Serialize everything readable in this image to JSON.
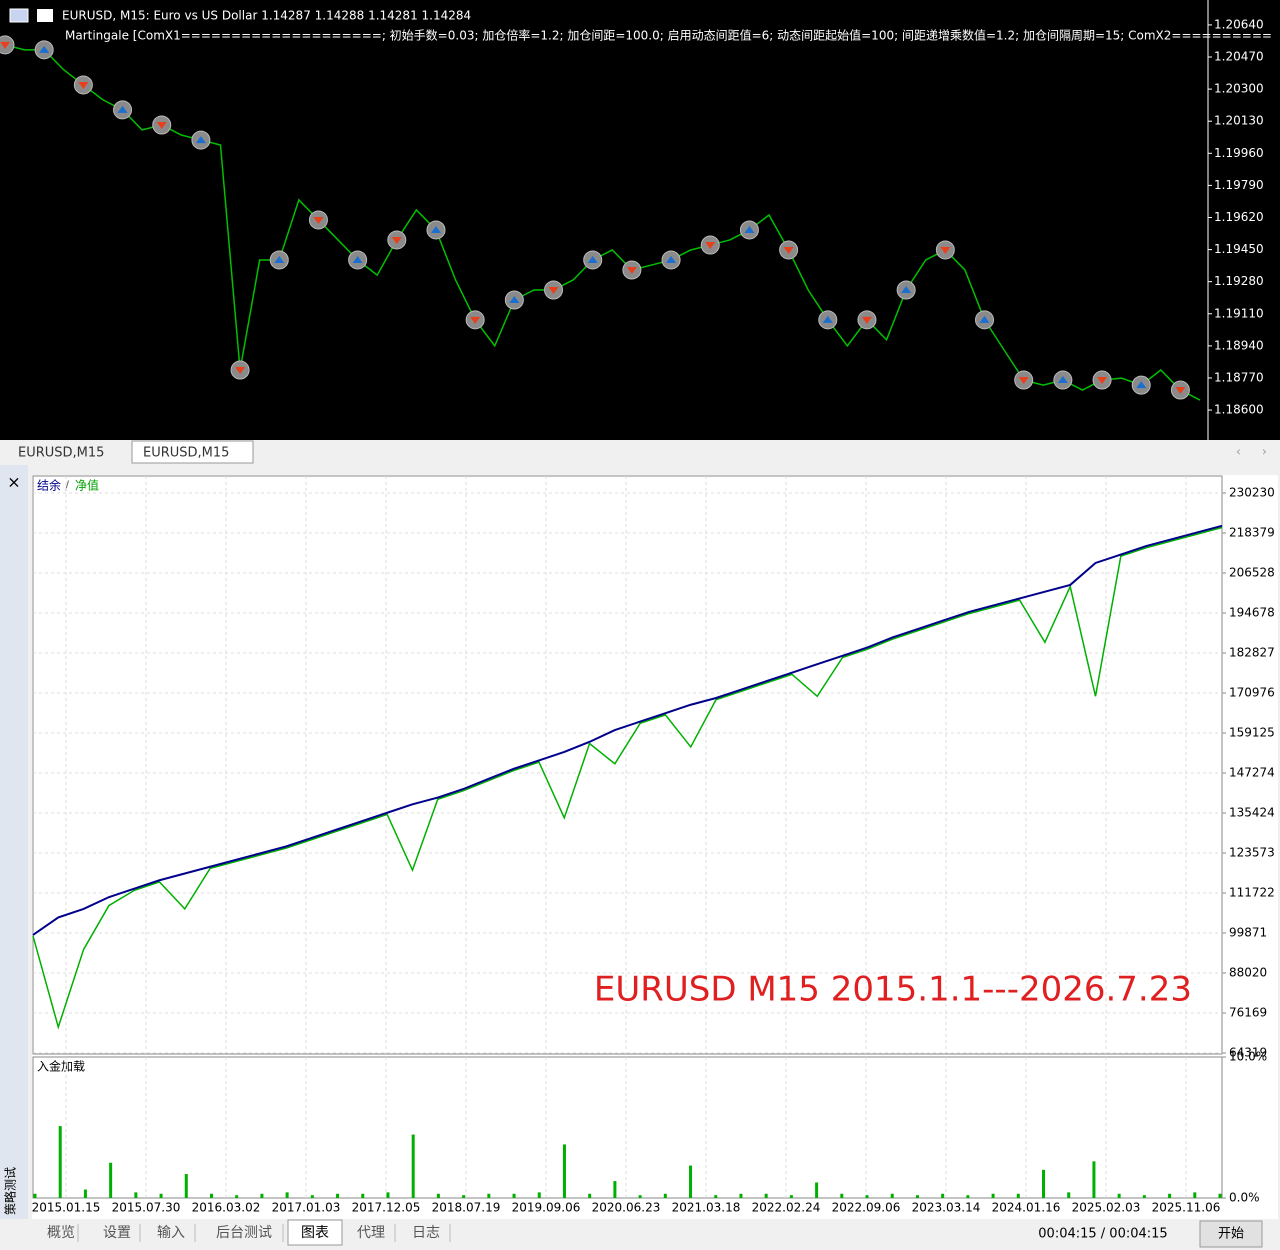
{
  "chart_data": [
    {
      "type": "line",
      "symbol_info": "EURUSD, M15:  Euro vs US Dollar  1.14287 1.14288 1.14281 1.14284",
      "expert": "Martingale [ComX1====================; 初始手数=0.03; 加仓倍率=1.2; 加仓间距=100.0; 启用动态间距值=6; 动态间距起始值=100; 间距递增乘数值=1.2; 加仓间隔周期=15; ComX2==========",
      "values": [
        1.20534,
        1.20508,
        1.20508,
        1.20402,
        1.20322,
        1.20243,
        1.2019,
        1.20084,
        1.2011,
        1.20057,
        1.2003,
        1.20004,
        1.18812,
        1.19395,
        1.19395,
        1.19713,
        1.19607,
        1.19501,
        1.19395,
        1.19315,
        1.19501,
        1.1966,
        1.19554,
        1.19289,
        1.19078,
        1.1894,
        1.19183,
        1.19236,
        1.19236,
        1.19289,
        1.19395,
        1.19448,
        1.19342,
        1.19368,
        1.19395,
        1.19448,
        1.19474,
        1.19501,
        1.19554,
        1.19633,
        1.19448,
        1.19236,
        1.19078,
        1.1894,
        1.19078,
        1.18972,
        1.19236,
        1.19395,
        1.19448,
        1.19342,
        1.19078,
        1.18918,
        1.18759,
        1.18732,
        1.18759,
        1.18706,
        1.18759,
        1.18769,
        1.18732,
        1.18812,
        1.18706,
        1.18653
      ],
      "color": "#00c000",
      "ylim": [
        1.18452,
        1.20772
      ],
      "yticks": [
        {
          "value": 1.2064,
          "label": "1.20640"
        },
        {
          "value": 1.2047,
          "label": "1.20470"
        },
        {
          "value": 1.203,
          "label": "1.20300"
        },
        {
          "value": 1.2013,
          "label": "1.20130"
        },
        {
          "value": 1.1996,
          "label": "1.19960"
        },
        {
          "value": 1.1979,
          "label": "1.19790"
        },
        {
          "value": 1.1962,
          "label": "1.19620"
        },
        {
          "value": 1.1945,
          "label": "1.19450"
        },
        {
          "value": 1.1928,
          "label": "1.19280"
        },
        {
          "value": 1.1911,
          "label": "1.19110"
        },
        {
          "value": 1.1894,
          "label": "1.18940"
        },
        {
          "value": 1.1877,
          "label": "1.18770"
        },
        {
          "value": 1.186,
          "label": "1.18600"
        }
      ]
    },
    {
      "type": "line",
      "legend_separator": "/",
      "annotation": "EURUSD M15 2015.1.1---2026.7.23",
      "series": [
        {
          "name": "净值",
          "color": "#00b000",
          "values": [
            99000,
            72000,
            95000,
            108000,
            112500,
            115000,
            107000,
            119000,
            121000,
            123000,
            125000,
            127500,
            130000,
            132500,
            135000,
            118500,
            139500,
            142000,
            145000,
            148000,
            150500,
            134000,
            156000,
            150000,
            162000,
            164500,
            155000,
            169000,
            171500,
            174000,
            176500,
            170000,
            181500,
            184000,
            187000,
            189500,
            192000,
            194500,
            196500,
            198500,
            186000,
            202500,
            170000,
            211500,
            214000,
            216000,
            218000,
            220000
          ]
        },
        {
          "name": "结余",
          "color": "#00008b",
          "values": [
            99300,
            104500,
            107000,
            110500,
            113000,
            115500,
            117500,
            119500,
            121500,
            123500,
            125500,
            128000,
            130500,
            133000,
            135500,
            138000,
            140000,
            142500,
            145500,
            148500,
            151000,
            153500,
            156500,
            160000,
            162500,
            165000,
            167500,
            169500,
            172000,
            174500,
            177000,
            179500,
            182000,
            184500,
            187500,
            190000,
            192500,
            195000,
            197000,
            199000,
            201000,
            203000,
            209500,
            212000,
            214500,
            216500,
            218500,
            220500
          ]
        }
      ],
      "ylim": [
        64319,
        235267
      ],
      "yticks": [
        230230,
        218379,
        206528,
        194678,
        182827,
        170976,
        159125,
        147274,
        135424,
        123573,
        111722,
        99871,
        88020,
        76169,
        64319
      ],
      "grid": true
    },
    {
      "type": "bar",
      "title": "入金加载",
      "values": [
        0.3,
        5.1,
        0.6,
        2.5,
        0.4,
        0.3,
        1.7,
        0.3,
        0.2,
        0.3,
        0.4,
        0.2,
        0.3,
        0.3,
        0.4,
        4.5,
        0.3,
        0.2,
        0.3,
        0.3,
        0.4,
        3.8,
        0.3,
        1.2,
        0.2,
        0.3,
        2.3,
        0.2,
        0.3,
        0.3,
        0.2,
        1.1,
        0.3,
        0.2,
        0.3,
        0.2,
        0.3,
        0.2,
        0.3,
        0.3,
        2.0,
        0.4,
        2.6,
        0.3,
        0.2,
        0.3,
        0.4,
        0.3
      ],
      "color": "#00b000",
      "ylim": [
        0,
        10
      ],
      "yticks": [
        {
          "value": 10,
          "label": "10.0%"
        },
        {
          "value": 0,
          "label": "0.0%"
        }
      ],
      "x_labels": [
        "2015.01.15",
        "2015.07.30",
        "2016.03.02",
        "2017.01.03",
        "2017.12.05",
        "2018.07.19",
        "2019.09.06",
        "2020.06.23",
        "2021.03.18",
        "2022.02.24",
        "2022.09.06",
        "2023.03.14",
        "2024.01.16",
        "2025.02.03",
        "2025.11.06"
      ]
    }
  ],
  "chart_tabs": [
    "EURUSD,M15",
    "EURUSD,M15"
  ],
  "tester": {
    "close": "×",
    "label": "策略测试",
    "tabs": [
      "概览",
      "设置",
      "输入",
      "后台测试",
      "图表",
      "代理",
      "日志"
    ],
    "elapsed": "00:04:15 / 00:04:15",
    "start_button": "开始"
  }
}
